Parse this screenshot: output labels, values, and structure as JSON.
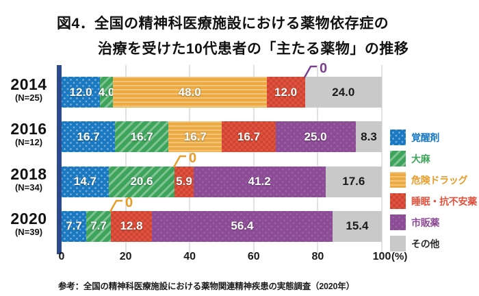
{
  "title": {
    "line1": "図4．全国の精神科医療施設における薬物依存症の",
    "line2": "治療を受けた10代患者の「主たる薬物」の推移"
  },
  "footer": {
    "source": "参考：全国の精神科医療施設における薬物関連精神疾患の実態調査（2020年）"
  },
  "chart_data": {
    "type": "bar",
    "orientation": "horizontal-stacked",
    "title": "図4．全国の精神科医療施設における薬物依存症の治療を受けた10代患者の「主たる薬物」の推移",
    "unit_label": "(%)",
    "x_ticks": [
      0,
      20,
      40,
      60,
      80,
      100
    ],
    "x_range": [
      0,
      100
    ],
    "grid": true,
    "legend_position": "right",
    "axis_color": "#2b4a8b",
    "categories": [
      {
        "year": "2014",
        "n": "(N=25)"
      },
      {
        "year": "2016",
        "n": "(N=12)"
      },
      {
        "year": "2018",
        "n": "(N=34)"
      },
      {
        "year": "2020",
        "n": "(N=39)"
      }
    ],
    "series": [
      {
        "name": "覚醒剤",
        "color": "#1a79c0",
        "pattern": "dots",
        "label_text": "white",
        "values": [
          12.0,
          16.7,
          14.7,
          7.7
        ]
      },
      {
        "name": "大麻",
        "color": "#3ea45b",
        "pattern": "diagonal-stripes",
        "label_text": "white",
        "values": [
          4.0,
          16.7,
          20.6,
          7.7
        ]
      },
      {
        "name": "危険ドラッグ",
        "color": "#ecaa41",
        "pattern": "horizontal-waves",
        "label_text": "white",
        "values": [
          48.0,
          16.7,
          0,
          0
        ]
      },
      {
        "name": "睡眠・抗不安薬",
        "color": "#e1523e",
        "pattern": "checker",
        "label_text": "white",
        "values": [
          12.0,
          16.7,
          5.9,
          12.8
        ]
      },
      {
        "name": "市販薬",
        "color": "#8c4c96",
        "pattern": "fine-dots",
        "label_text": "white",
        "values": [
          0,
          25.0,
          41.2,
          56.4
        ]
      },
      {
        "name": "その他",
        "color": "#c9c9c9",
        "pattern": "solid",
        "label_text": "black",
        "values": [
          24.0,
          8.3,
          17.6,
          15.4
        ]
      }
    ],
    "zero_callouts": [
      {
        "row": 0,
        "series": 4,
        "label": "0",
        "color": "#7c3f8e"
      },
      {
        "row": 2,
        "series": 2,
        "label": "0",
        "color": "#e89c28"
      },
      {
        "row": 3,
        "series": 2,
        "label": "0",
        "color": "#e89c28"
      }
    ],
    "legend_text_colors": [
      "#1a79c0",
      "#3ea45b",
      "#e89c28",
      "#e1523e",
      "#8c4c96",
      "#2b2b2b"
    ]
  }
}
